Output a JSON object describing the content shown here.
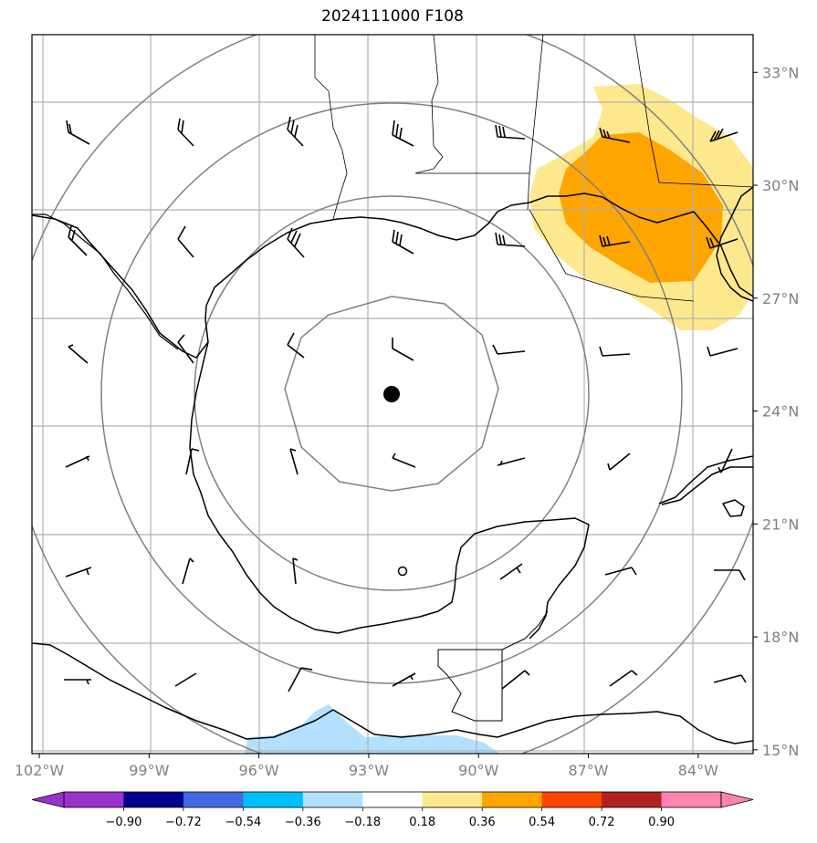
{
  "title": "2024111000 F108",
  "map": {
    "lon_range": [
      -102.2,
      -82.5
    ],
    "lat_range": [
      14.9,
      34.0
    ],
    "lon_ticks": [
      {
        "value": -102,
        "label": "102°W"
      },
      {
        "value": -99,
        "label": "99°W"
      },
      {
        "value": -96,
        "label": "96°W"
      },
      {
        "value": -93,
        "label": "93°W"
      },
      {
        "value": -90,
        "label": "90°W"
      },
      {
        "value": -87,
        "label": "87°W"
      },
      {
        "value": -84,
        "label": "84°W"
      }
    ],
    "lat_ticks": [
      {
        "value": 33,
        "label": "33°N"
      },
      {
        "value": 30,
        "label": "30°N"
      },
      {
        "value": 27,
        "label": "27°N"
      },
      {
        "value": 24,
        "label": "24°N"
      },
      {
        "value": 21,
        "label": "21°N"
      },
      {
        "value": 18,
        "label": "18°N"
      },
      {
        "value": 15,
        "label": "15°N"
      }
    ],
    "center_marker": {
      "lon": -92.6,
      "lat": 24.8
    },
    "grid": true,
    "colors": {
      "grid": "#b0b0b0",
      "range_rings": "#808080",
      "coast": "#000000",
      "positive_light": "#fee88e",
      "positive_mid": "#ffa500",
      "negative_light": "#b3e0ff"
    }
  },
  "colorbar": {
    "colors": [
      "#9932cc",
      "#00008b",
      "#4169e1",
      "#00bfff",
      "#b3e0ff",
      "#ffffff",
      "#fee88e",
      "#ffa500",
      "#ff4500",
      "#b22222",
      "#ff85b0"
    ],
    "labels": [
      "−0.90",
      "−0.72",
      "−0.54",
      "−0.36",
      "−0.18",
      "0.18",
      "0.36",
      "0.54",
      "0.72",
      "0.90"
    ]
  }
}
